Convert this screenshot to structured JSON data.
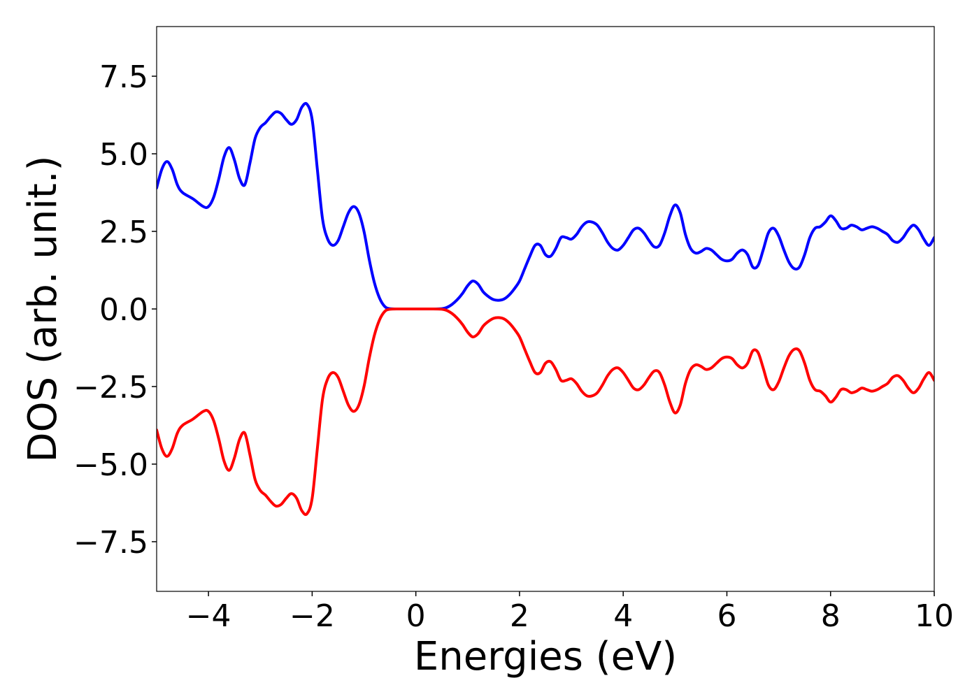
{
  "chart_data": {
    "type": "line",
    "title": "",
    "xlabel": "Energies (eV)",
    "ylabel": "DOS (arb. unit.)",
    "xlim": [
      -5,
      10
    ],
    "ylim": [
      -9.1,
      9.1
    ],
    "xticks": [
      -4,
      -2,
      0,
      2,
      4,
      6,
      8,
      10
    ],
    "xtick_labels": [
      "−4",
      "−2",
      "0",
      "2",
      "4",
      "6",
      "8",
      "10"
    ],
    "yticks": [
      7.5,
      5.0,
      2.5,
      0.0,
      -2.5,
      -5.0,
      -7.5
    ],
    "ytick_labels": [
      "7.5",
      "5.0",
      "2.5",
      "0.0",
      "−2.5",
      "−5.0",
      "−7.5"
    ],
    "grid": false,
    "legend": false,
    "series": [
      {
        "color": "#0000ff",
        "points": [
          [
            -5.0,
            3.9
          ],
          [
            -4.9,
            4.5
          ],
          [
            -4.8,
            4.75
          ],
          [
            -4.7,
            4.5
          ],
          [
            -4.6,
            4.0
          ],
          [
            -4.5,
            3.75
          ],
          [
            -4.3,
            3.55
          ],
          [
            -4.1,
            3.3
          ],
          [
            -4.0,
            3.3
          ],
          [
            -3.9,
            3.6
          ],
          [
            -3.8,
            4.2
          ],
          [
            -3.7,
            4.9
          ],
          [
            -3.6,
            5.2
          ],
          [
            -3.5,
            4.8
          ],
          [
            -3.4,
            4.2
          ],
          [
            -3.3,
            4.0
          ],
          [
            -3.2,
            4.7
          ],
          [
            -3.1,
            5.5
          ],
          [
            -3.0,
            5.85
          ],
          [
            -2.9,
            6.0
          ],
          [
            -2.8,
            6.2
          ],
          [
            -2.7,
            6.35
          ],
          [
            -2.6,
            6.3
          ],
          [
            -2.5,
            6.1
          ],
          [
            -2.4,
            5.95
          ],
          [
            -2.3,
            6.1
          ],
          [
            -2.2,
            6.5
          ],
          [
            -2.1,
            6.6
          ],
          [
            -2.0,
            6.1
          ],
          [
            -1.9,
            4.5
          ],
          [
            -1.8,
            2.9
          ],
          [
            -1.7,
            2.25
          ],
          [
            -1.6,
            2.05
          ],
          [
            -1.5,
            2.2
          ],
          [
            -1.4,
            2.65
          ],
          [
            -1.3,
            3.1
          ],
          [
            -1.2,
            3.3
          ],
          [
            -1.1,
            3.1
          ],
          [
            -1.0,
            2.5
          ],
          [
            -0.9,
            1.6
          ],
          [
            -0.8,
            0.85
          ],
          [
            -0.7,
            0.35
          ],
          [
            -0.6,
            0.08
          ],
          [
            -0.5,
            0.01
          ],
          [
            -0.3,
            0.0
          ],
          [
            0.0,
            0.0
          ],
          [
            0.3,
            0.0
          ],
          [
            0.5,
            0.01
          ],
          [
            0.6,
            0.05
          ],
          [
            0.7,
            0.15
          ],
          [
            0.8,
            0.3
          ],
          [
            0.9,
            0.5
          ],
          [
            1.0,
            0.75
          ],
          [
            1.1,
            0.9
          ],
          [
            1.2,
            0.8
          ],
          [
            1.3,
            0.55
          ],
          [
            1.4,
            0.4
          ],
          [
            1.5,
            0.3
          ],
          [
            1.6,
            0.28
          ],
          [
            1.7,
            0.32
          ],
          [
            1.8,
            0.45
          ],
          [
            1.9,
            0.65
          ],
          [
            2.0,
            0.9
          ],
          [
            2.1,
            1.3
          ],
          [
            2.2,
            1.7
          ],
          [
            2.3,
            2.05
          ],
          [
            2.4,
            2.05
          ],
          [
            2.5,
            1.75
          ],
          [
            2.6,
            1.7
          ],
          [
            2.7,
            1.95
          ],
          [
            2.8,
            2.3
          ],
          [
            2.9,
            2.3
          ],
          [
            3.0,
            2.25
          ],
          [
            3.1,
            2.4
          ],
          [
            3.2,
            2.65
          ],
          [
            3.3,
            2.8
          ],
          [
            3.4,
            2.8
          ],
          [
            3.5,
            2.7
          ],
          [
            3.6,
            2.45
          ],
          [
            3.7,
            2.15
          ],
          [
            3.8,
            1.95
          ],
          [
            3.9,
            1.9
          ],
          [
            4.0,
            2.05
          ],
          [
            4.1,
            2.3
          ],
          [
            4.2,
            2.55
          ],
          [
            4.3,
            2.6
          ],
          [
            4.4,
            2.45
          ],
          [
            4.5,
            2.2
          ],
          [
            4.6,
            2.0
          ],
          [
            4.7,
            2.05
          ],
          [
            4.8,
            2.45
          ],
          [
            4.9,
            3.0
          ],
          [
            5.0,
            3.35
          ],
          [
            5.1,
            3.1
          ],
          [
            5.2,
            2.4
          ],
          [
            5.3,
            1.95
          ],
          [
            5.4,
            1.8
          ],
          [
            5.5,
            1.85
          ],
          [
            5.6,
            1.95
          ],
          [
            5.7,
            1.9
          ],
          [
            5.8,
            1.75
          ],
          [
            5.9,
            1.6
          ],
          [
            6.0,
            1.55
          ],
          [
            6.1,
            1.6
          ],
          [
            6.2,
            1.8
          ],
          [
            6.3,
            1.9
          ],
          [
            6.4,
            1.75
          ],
          [
            6.5,
            1.35
          ],
          [
            6.6,
            1.4
          ],
          [
            6.7,
            1.9
          ],
          [
            6.8,
            2.45
          ],
          [
            6.9,
            2.6
          ],
          [
            7.0,
            2.35
          ],
          [
            7.1,
            1.9
          ],
          [
            7.2,
            1.5
          ],
          [
            7.3,
            1.3
          ],
          [
            7.4,
            1.35
          ],
          [
            7.5,
            1.75
          ],
          [
            7.6,
            2.3
          ],
          [
            7.7,
            2.6
          ],
          [
            7.8,
            2.65
          ],
          [
            7.9,
            2.8
          ],
          [
            8.0,
            3.0
          ],
          [
            8.1,
            2.85
          ],
          [
            8.2,
            2.6
          ],
          [
            8.3,
            2.6
          ],
          [
            8.4,
            2.7
          ],
          [
            8.5,
            2.65
          ],
          [
            8.6,
            2.55
          ],
          [
            8.7,
            2.6
          ],
          [
            8.8,
            2.65
          ],
          [
            8.9,
            2.6
          ],
          [
            9.0,
            2.5
          ],
          [
            9.1,
            2.4
          ],
          [
            9.2,
            2.2
          ],
          [
            9.3,
            2.15
          ],
          [
            9.4,
            2.3
          ],
          [
            9.5,
            2.55
          ],
          [
            9.6,
            2.7
          ],
          [
            9.7,
            2.55
          ],
          [
            9.8,
            2.25
          ],
          [
            9.9,
            2.05
          ],
          [
            10.0,
            2.3
          ]
        ]
      },
      {
        "color": "#ff0000",
        "points": [
          [
            -5.0,
            -3.9
          ],
          [
            -4.9,
            -4.5
          ],
          [
            -4.8,
            -4.75
          ],
          [
            -4.7,
            -4.5
          ],
          [
            -4.6,
            -4.0
          ],
          [
            -4.5,
            -3.75
          ],
          [
            -4.3,
            -3.55
          ],
          [
            -4.1,
            -3.3
          ],
          [
            -4.0,
            -3.3
          ],
          [
            -3.9,
            -3.6
          ],
          [
            -3.8,
            -4.2
          ],
          [
            -3.7,
            -4.9
          ],
          [
            -3.6,
            -5.2
          ],
          [
            -3.5,
            -4.8
          ],
          [
            -3.4,
            -4.2
          ],
          [
            -3.3,
            -4.0
          ],
          [
            -3.2,
            -4.7
          ],
          [
            -3.1,
            -5.5
          ],
          [
            -3.0,
            -5.85
          ],
          [
            -2.9,
            -6.0
          ],
          [
            -2.8,
            -6.2
          ],
          [
            -2.7,
            -6.35
          ],
          [
            -2.6,
            -6.3
          ],
          [
            -2.5,
            -6.1
          ],
          [
            -2.4,
            -5.95
          ],
          [
            -2.3,
            -6.1
          ],
          [
            -2.2,
            -6.5
          ],
          [
            -2.1,
            -6.6
          ],
          [
            -2.0,
            -6.1
          ],
          [
            -1.9,
            -4.5
          ],
          [
            -1.8,
            -2.9
          ],
          [
            -1.7,
            -2.25
          ],
          [
            -1.6,
            -2.05
          ],
          [
            -1.5,
            -2.2
          ],
          [
            -1.4,
            -2.65
          ],
          [
            -1.3,
            -3.1
          ],
          [
            -1.2,
            -3.3
          ],
          [
            -1.1,
            -3.1
          ],
          [
            -1.0,
            -2.5
          ],
          [
            -0.9,
            -1.6
          ],
          [
            -0.8,
            -0.85
          ],
          [
            -0.7,
            -0.35
          ],
          [
            -0.6,
            -0.08
          ],
          [
            -0.5,
            -0.01
          ],
          [
            -0.3,
            0.0
          ],
          [
            0.0,
            0.0
          ],
          [
            0.3,
            0.0
          ],
          [
            0.5,
            -0.01
          ],
          [
            0.6,
            -0.05
          ],
          [
            0.7,
            -0.15
          ],
          [
            0.8,
            -0.3
          ],
          [
            0.9,
            -0.5
          ],
          [
            1.0,
            -0.75
          ],
          [
            1.1,
            -0.9
          ],
          [
            1.2,
            -0.8
          ],
          [
            1.3,
            -0.55
          ],
          [
            1.4,
            -0.4
          ],
          [
            1.5,
            -0.3
          ],
          [
            1.6,
            -0.28
          ],
          [
            1.7,
            -0.32
          ],
          [
            1.8,
            -0.45
          ],
          [
            1.9,
            -0.65
          ],
          [
            2.0,
            -0.9
          ],
          [
            2.1,
            -1.3
          ],
          [
            2.2,
            -1.7
          ],
          [
            2.3,
            -2.05
          ],
          [
            2.4,
            -2.05
          ],
          [
            2.5,
            -1.75
          ],
          [
            2.6,
            -1.7
          ],
          [
            2.7,
            -1.95
          ],
          [
            2.8,
            -2.3
          ],
          [
            2.9,
            -2.3
          ],
          [
            3.0,
            -2.25
          ],
          [
            3.1,
            -2.4
          ],
          [
            3.2,
            -2.65
          ],
          [
            3.3,
            -2.8
          ],
          [
            3.4,
            -2.8
          ],
          [
            3.5,
            -2.7
          ],
          [
            3.6,
            -2.45
          ],
          [
            3.7,
            -2.15
          ],
          [
            3.8,
            -1.95
          ],
          [
            3.9,
            -1.9
          ],
          [
            4.0,
            -2.05
          ],
          [
            4.1,
            -2.3
          ],
          [
            4.2,
            -2.55
          ],
          [
            4.3,
            -2.6
          ],
          [
            4.4,
            -2.45
          ],
          [
            4.5,
            -2.2
          ],
          [
            4.6,
            -2.0
          ],
          [
            4.7,
            -2.05
          ],
          [
            4.8,
            -2.45
          ],
          [
            4.9,
            -3.0
          ],
          [
            5.0,
            -3.35
          ],
          [
            5.1,
            -3.1
          ],
          [
            5.2,
            -2.4
          ],
          [
            5.3,
            -1.95
          ],
          [
            5.4,
            -1.8
          ],
          [
            5.5,
            -1.85
          ],
          [
            5.6,
            -1.95
          ],
          [
            5.7,
            -1.9
          ],
          [
            5.8,
            -1.75
          ],
          [
            5.9,
            -1.6
          ],
          [
            6.0,
            -1.55
          ],
          [
            6.1,
            -1.6
          ],
          [
            6.2,
            -1.8
          ],
          [
            6.3,
            -1.9
          ],
          [
            6.4,
            -1.75
          ],
          [
            6.5,
            -1.35
          ],
          [
            6.6,
            -1.4
          ],
          [
            6.7,
            -1.9
          ],
          [
            6.8,
            -2.45
          ],
          [
            6.9,
            -2.6
          ],
          [
            7.0,
            -2.35
          ],
          [
            7.1,
            -1.9
          ],
          [
            7.2,
            -1.5
          ],
          [
            7.3,
            -1.3
          ],
          [
            7.4,
            -1.35
          ],
          [
            7.5,
            -1.75
          ],
          [
            7.6,
            -2.3
          ],
          [
            7.7,
            -2.6
          ],
          [
            7.8,
            -2.65
          ],
          [
            7.9,
            -2.8
          ],
          [
            8.0,
            -3.0
          ],
          [
            8.1,
            -2.85
          ],
          [
            8.2,
            -2.6
          ],
          [
            8.3,
            -2.6
          ],
          [
            8.4,
            -2.7
          ],
          [
            8.5,
            -2.65
          ],
          [
            8.6,
            -2.55
          ],
          [
            8.7,
            -2.6
          ],
          [
            8.8,
            -2.65
          ],
          [
            8.9,
            -2.6
          ],
          [
            9.0,
            -2.5
          ],
          [
            9.1,
            -2.4
          ],
          [
            9.2,
            -2.2
          ],
          [
            9.3,
            -2.15
          ],
          [
            9.4,
            -2.3
          ],
          [
            9.5,
            -2.55
          ],
          [
            9.6,
            -2.7
          ],
          [
            9.7,
            -2.55
          ],
          [
            9.8,
            -2.25
          ],
          [
            9.9,
            -2.05
          ],
          [
            10.0,
            -2.3
          ]
        ]
      }
    ]
  }
}
